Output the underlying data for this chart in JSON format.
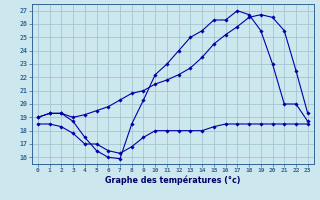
{
  "title": "Graphe des températures (°c)",
  "bg_color": "#cce8ee",
  "line_color": "#0000aa",
  "grid_color": "#9bbfcc",
  "xlim_min": -0.5,
  "xlim_max": 23.5,
  "ylim_min": 15.5,
  "ylim_max": 27.5,
  "xticks": [
    0,
    1,
    2,
    3,
    4,
    5,
    6,
    7,
    8,
    9,
    10,
    11,
    12,
    13,
    14,
    15,
    16,
    17,
    18,
    19,
    20,
    21,
    22,
    23
  ],
  "yticks": [
    16,
    17,
    18,
    19,
    20,
    21,
    22,
    23,
    24,
    25,
    26,
    27
  ],
  "line1_x": [
    0,
    1,
    2,
    3,
    4,
    5,
    6,
    7,
    8,
    9,
    10,
    11,
    12,
    13,
    14,
    15,
    16,
    17,
    18,
    19,
    20,
    21,
    22,
    23
  ],
  "line1_y": [
    19.0,
    19.3,
    19.3,
    18.7,
    17.5,
    16.5,
    16.0,
    15.9,
    18.5,
    20.3,
    22.2,
    23.0,
    24.0,
    25.0,
    25.5,
    26.3,
    26.3,
    27.0,
    26.7,
    25.5,
    23.0,
    20.0,
    20.0,
    18.7
  ],
  "line2_x": [
    0,
    1,
    2,
    3,
    4,
    5,
    6,
    7,
    8,
    9,
    10,
    11,
    12,
    13,
    14,
    15,
    16,
    17,
    18,
    19,
    20,
    21,
    22,
    23
  ],
  "line2_y": [
    19.0,
    19.3,
    19.3,
    19.0,
    19.2,
    19.5,
    19.8,
    20.3,
    20.8,
    21.0,
    21.5,
    21.8,
    22.2,
    22.7,
    23.5,
    24.5,
    25.2,
    25.8,
    26.5,
    26.7,
    26.5,
    25.5,
    22.5,
    19.3
  ],
  "line3_x": [
    0,
    1,
    2,
    3,
    4,
    5,
    6,
    7,
    8,
    9,
    10,
    11,
    12,
    13,
    14,
    15,
    16,
    17,
    18,
    19,
    20,
    21,
    22,
    23
  ],
  "line3_y": [
    18.5,
    18.5,
    18.3,
    17.8,
    17.0,
    17.0,
    16.5,
    16.3,
    16.8,
    17.5,
    18.0,
    18.0,
    18.0,
    18.0,
    18.0,
    18.3,
    18.5,
    18.5,
    18.5,
    18.5,
    18.5,
    18.5,
    18.5,
    18.5
  ]
}
